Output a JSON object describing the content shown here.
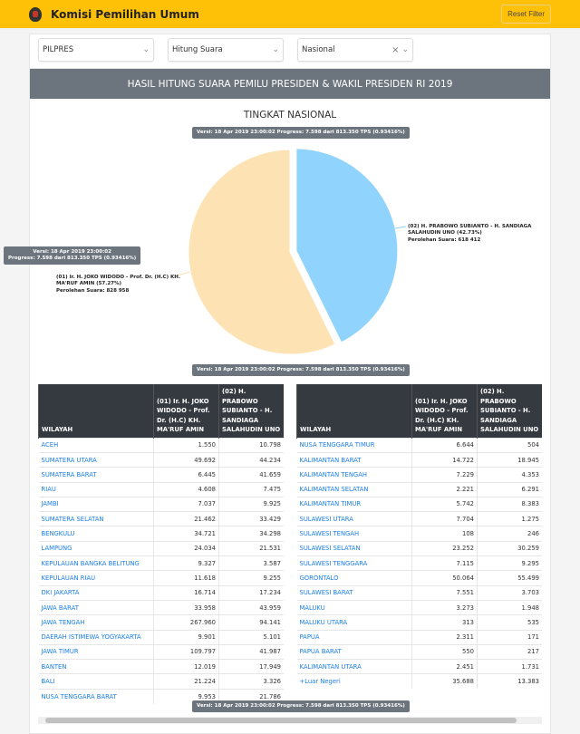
{
  "header": {
    "title": "Komisi Pemilihan Umum",
    "reset_label": "Reset Filter"
  },
  "filters": {
    "type": "PILPRES",
    "mode": "Hitung Suara",
    "region": "Nasional"
  },
  "title": "HASIL HITUNG SUARA PEMILU PRESIDEN & WAKIL PRESIDEN RI 2019",
  "subtitle": "TINGKAT NASIONAL",
  "version_text": "Versi: 18 Apr 2019 23:00:02 Progress: 7.598 dari 813.350 TPS (0.93416%)",
  "tooltip": {
    "line1": "Versi: 18 Apr 2019 23:00:02",
    "line2": "Progress: 7.598 dari 813.350 TPS (0.93416%)"
  },
  "chart_data": {
    "type": "pie",
    "title": "TINGKAT NASIONAL",
    "slices": [
      {
        "name": "(02) H. PRABOWO SUBIANTO - H. SANDIAGA SALAHUDIN UNO",
        "percent": 42.73,
        "votes_label": "Perolehan Suara: 618 412",
        "value": 618412,
        "color": "#90d3fd"
      },
      {
        "name": "(01) Ir. H. JOKO WIDODO - Prof. Dr. (H.C) KH. MA'RUF AMIN",
        "percent": 57.27,
        "votes_label": "Perolehan Suara: 828 958",
        "value": 828958,
        "color": "#fde2b3"
      }
    ]
  },
  "table": {
    "headers": [
      "WILAYAH",
      "(01) Ir. H. JOKO WIDODO - Prof. Dr. (H.C) KH. MA'RUF AMIN",
      "(02) H. PRABOWO SUBIANTO - H. SANDIAGA SALAHUDIN UNO"
    ],
    "left": [
      [
        "ACEH",
        "1.550",
        "10.798"
      ],
      [
        "SUMATERA UTARA",
        "49.692",
        "44.234"
      ],
      [
        "SUMATERA BARAT",
        "6.445",
        "41.659"
      ],
      [
        "RIAU",
        "4.608",
        "7.475"
      ],
      [
        "JAMBI",
        "7.037",
        "9.925"
      ],
      [
        "SUMATERA SELATAN",
        "21.462",
        "33.429"
      ],
      [
        "BENGKULU",
        "34.721",
        "34.298"
      ],
      [
        "LAMPUNG",
        "24.034",
        "21.531"
      ],
      [
        "KEPULAUAN BANGKA BELITUNG",
        "9.327",
        "3.587"
      ],
      [
        "KEPULAUAN RIAU",
        "11.618",
        "9.255"
      ],
      [
        "DKI JAKARTA",
        "16.714",
        "17.234"
      ],
      [
        "JAWA BARAT",
        "33.958",
        "43.959"
      ],
      [
        "JAWA TENGAH",
        "267.960",
        "94.141"
      ],
      [
        "DAERAH ISTIMEWA YOGYAKARTA",
        "9.901",
        "5.101"
      ],
      [
        "JAWA TIMUR",
        "109.797",
        "41.987"
      ],
      [
        "BANTEN",
        "12.019",
        "17.949"
      ],
      [
        "BALI",
        "21.224",
        "3.326"
      ],
      [
        "NUSA TENGGARA BARAT",
        "9.953",
        "21.786"
      ]
    ],
    "right": [
      [
        "NUSA TENGGARA TIMUR",
        "6.644",
        "504"
      ],
      [
        "KALIMANTAN BARAT",
        "14.722",
        "18.945"
      ],
      [
        "KALIMANTAN TENGAH",
        "7.229",
        "4.353"
      ],
      [
        "KALIMANTAN SELATAN",
        "2.221",
        "6.291"
      ],
      [
        "KALIMANTAN TIMUR",
        "5.742",
        "8.383"
      ],
      [
        "SULAWESI UTARA",
        "7.704",
        "1.275"
      ],
      [
        "SULAWESI TENGAH",
        "108",
        "246"
      ],
      [
        "SULAWESI SELATAN",
        "23.252",
        "30.259"
      ],
      [
        "SULAWESI TENGGARA",
        "7.115",
        "9.295"
      ],
      [
        "GORONTALO",
        "50.064",
        "55.499"
      ],
      [
        "SULAWESI BARAT",
        "7.551",
        "3.703"
      ],
      [
        "MALUKU",
        "3.273",
        "1.948"
      ],
      [
        "MALUKU UTARA",
        "313",
        "535"
      ],
      [
        "PAPUA",
        "2.311",
        "171"
      ],
      [
        "PAPUA BARAT",
        "550",
        "217"
      ],
      [
        "KALIMANTAN UTARA",
        "2.451",
        "1.731"
      ],
      [
        "+Luar Negeri",
        "35.688",
        "13.383"
      ]
    ]
  }
}
